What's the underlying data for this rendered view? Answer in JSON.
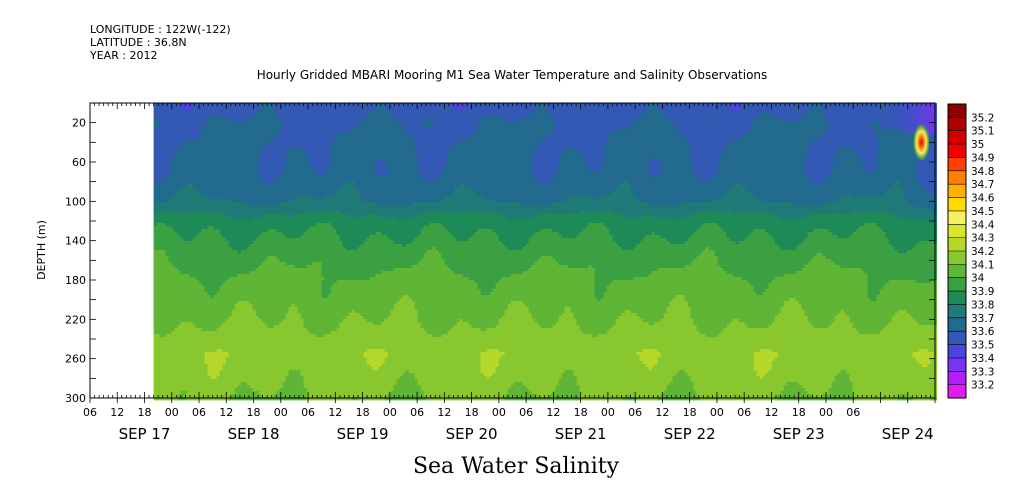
{
  "header": {
    "longitude": "LONGITUDE : 122W(-122)",
    "latitude": "LATITUDE : 36.8N",
    "year": "YEAR : 2012"
  },
  "chart_data": {
    "type": "heatmap",
    "title": "Hourly Gridded MBARI Mooring M1 Sea Water Temperature and Salinity Observations",
    "footer": "Sea Water Salinity",
    "ylabel": "DEPTH (m)",
    "xlabel": "",
    "y_axis": {
      "range": [
        300,
        0
      ],
      "ticks": [
        20,
        60,
        100,
        140,
        180,
        220,
        260,
        300
      ],
      "reversed": true
    },
    "x_axis": {
      "hour_labels": [
        "06",
        "12",
        "18",
        "00",
        "06",
        "12",
        "18",
        "00",
        "06",
        "12",
        "18",
        "00",
        "06",
        "12",
        "18",
        "00",
        "06",
        "12",
        "18",
        "00",
        "06",
        "12",
        "18",
        "00",
        "06",
        "12",
        "18",
        "00",
        "06"
      ],
      "day_labels": [
        "SEP 17",
        "SEP 18",
        "SEP 19",
        "SEP 20",
        "SEP 21",
        "SEP 22",
        "SEP 23",
        "SEP 24"
      ],
      "day_label_hours": [
        12,
        36,
        60,
        84,
        108,
        132,
        156,
        180
      ]
    },
    "data_start_hour": 14,
    "colorbar": {
      "levels": [
        "35.2",
        "35.1",
        "35",
        "34.9",
        "34.8",
        "34.7",
        "34.6",
        "34.5",
        "34.4",
        "34.3",
        "34.2",
        "34.1",
        "34",
        "33.9",
        "33.8",
        "33.7",
        "33.6",
        "33.5",
        "33.4",
        "33.3",
        "33.2"
      ],
      "colors": [
        "#8b0000",
        "#b00000",
        "#d40000",
        "#f00000",
        "#ff4000",
        "#ff7f00",
        "#ffb000",
        "#ffdc00",
        "#f5f064",
        "#d8e628",
        "#b5d82a",
        "#88c82e",
        "#5fb535",
        "#3aa042",
        "#1e8a58",
        "#1f7a78",
        "#226a8e",
        "#3359b5",
        "#4d44e0",
        "#7a33f2",
        "#b020f5",
        "#e01cf0"
      ]
    },
    "depth_profile": [
      {
        "depth": 5,
        "value": 33.55
      },
      {
        "depth": 20,
        "value": 33.6
      },
      {
        "depth": 70,
        "value": 33.62
      },
      {
        "depth": 100,
        "value": 33.7
      },
      {
        "depth": 120,
        "value": 33.85
      },
      {
        "depth": 150,
        "value": 33.95
      },
      {
        "depth": 180,
        "value": 34.02
      },
      {
        "depth": 215,
        "value": 34.08
      },
      {
        "depth": 240,
        "value": 34.14
      },
      {
        "depth": 255,
        "value": 34.18
      },
      {
        "depth": 280,
        "value": 34.14
      },
      {
        "depth": 300,
        "value": 34.1
      }
    ],
    "anomaly": {
      "hour": 183,
      "depth": 40,
      "value": 35.0
    }
  }
}
